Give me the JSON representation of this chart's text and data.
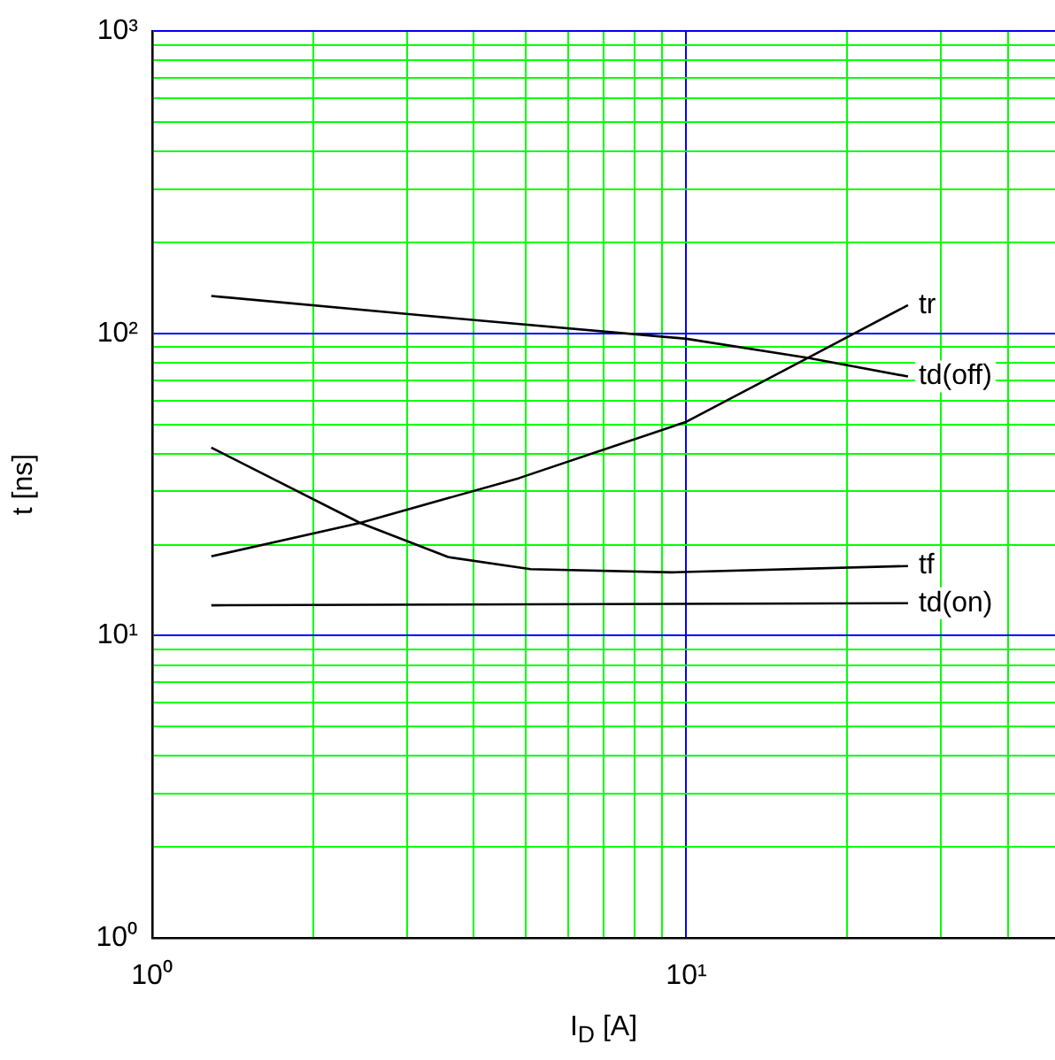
{
  "chart_data": {
    "type": "line",
    "xlabel": "I$_{D}$ [A]",
    "ylabel": "t [ns]",
    "log": "xy",
    "grid": true,
    "legend": false,
    "marker": "none",
    "line_style": "solid",
    "xlim": [
      1,
      49
    ],
    "ylim": [
      1,
      1000
    ],
    "xticks": [
      {
        "value": 1,
        "label": "10⁰"
      },
      {
        "value": 2,
        "label": null
      },
      {
        "value": 3,
        "label": null
      },
      {
        "value": 4,
        "label": null
      },
      {
        "value": 5,
        "label": null
      },
      {
        "value": 6,
        "label": null
      },
      {
        "value": 7,
        "label": null
      },
      {
        "value": 8,
        "label": null
      },
      {
        "value": 9,
        "label": null
      },
      {
        "value": 10,
        "label": "10¹"
      },
      {
        "value": 20,
        "label": null
      },
      {
        "value": 30,
        "label": null
      },
      {
        "value": 40,
        "label": null
      }
    ],
    "yticks": [
      {
        "value": 1,
        "label": "10⁰"
      },
      {
        "value": 2,
        "label": null
      },
      {
        "value": 3,
        "label": null
      },
      {
        "value": 4,
        "label": null
      },
      {
        "value": 5,
        "label": null
      },
      {
        "value": 6,
        "label": null
      },
      {
        "value": 7,
        "label": null
      },
      {
        "value": 8,
        "label": null
      },
      {
        "value": 9,
        "label": null
      },
      {
        "value": 10,
        "label": "10¹"
      },
      {
        "value": 20,
        "label": null
      },
      {
        "value": 30,
        "label": null
      },
      {
        "value": 40,
        "label": null
      },
      {
        "value": 50,
        "label": null
      },
      {
        "value": 60,
        "label": null
      },
      {
        "value": 70,
        "label": null
      },
      {
        "value": 80,
        "label": null
      },
      {
        "value": 90,
        "label": null
      },
      {
        "value": 100,
        "label": "10²"
      },
      {
        "value": 200,
        "label": null
      },
      {
        "value": 300,
        "label": null
      },
      {
        "value": 400,
        "label": null
      },
      {
        "value": 500,
        "label": null
      },
      {
        "value": 600,
        "label": null
      },
      {
        "value": 700,
        "label": null
      },
      {
        "value": 800,
        "label": null
      },
      {
        "value": 900,
        "label": null
      },
      {
        "value": 1000,
        "label": "10³"
      }
    ],
    "series": [
      {
        "name": "tr",
        "color": "#000000",
        "x": [
          1.29,
          2.45,
          4.86,
          10,
          16.9,
          26
        ],
        "values": [
          18.3,
          23.6,
          33.2,
          51,
          83,
          124
        ]
      },
      {
        "name": "td(off)",
        "color": "#000000",
        "x": [
          1.29,
          3.15,
          10,
          16.9,
          26
        ],
        "values": [
          133,
          115,
          96,
          83,
          72
        ]
      },
      {
        "name": "tf",
        "color": "#000000",
        "x": [
          1.29,
          2.45,
          3.58,
          5.11,
          9.4,
          26
        ],
        "values": [
          41.9,
          23.6,
          18.2,
          16.6,
          16.2,
          17.0
        ]
      },
      {
        "name": "td(on)",
        "color": "#000000",
        "x": [
          1.29,
          26
        ],
        "values": [
          12.6,
          12.8
        ]
      }
    ]
  }
}
